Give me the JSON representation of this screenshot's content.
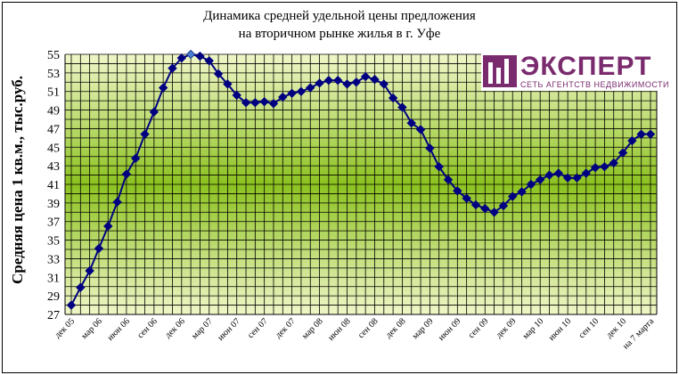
{
  "chart_data": {
    "type": "line",
    "title_line1": "Динамика средней удельной цены предложения",
    "title_line2": "на вторичном рынке жилья в г. Уфе",
    "ylabel": "Средняя цена 1 кв.м., тыс.руб.",
    "xlabel": "",
    "ylim": [
      27,
      55
    ],
    "yticks": [
      27,
      29,
      31,
      33,
      35,
      37,
      39,
      41,
      43,
      45,
      47,
      49,
      51,
      53,
      55
    ],
    "grid": true,
    "legend": "none",
    "x_tick_labels": [
      "дек 05",
      "мар 06",
      "июн 06",
      "сен 06",
      "дек 06",
      "мар 07",
      "июн 07",
      "сен 07",
      "дек 07",
      "мар 08",
      "июн 08",
      "сен 08",
      "дек 08",
      "мар 09",
      "июн 09",
      "сен 09",
      "дек 09",
      "мар 10",
      "июн 10",
      "сен 10",
      "дек 10",
      "на 7 марта"
    ],
    "values": [
      28.0,
      29.9,
      31.7,
      34.1,
      36.5,
      39.1,
      42.1,
      43.8,
      46.4,
      48.8,
      51.4,
      53.5,
      54.6,
      55.0,
      54.8,
      54.3,
      52.9,
      51.8,
      50.6,
      49.8,
      49.8,
      49.9,
      49.7,
      50.4,
      50.8,
      51.0,
      51.4,
      51.9,
      52.2,
      52.2,
      51.8,
      52.0,
      52.6,
      52.3,
      51.8,
      50.3,
      49.3,
      47.6,
      46.9,
      44.9,
      42.9,
      41.5,
      40.3,
      39.5,
      38.8,
      38.4,
      38.0,
      38.7,
      39.7,
      40.2,
      41.0,
      41.5,
      42.0,
      42.2,
      41.7,
      41.7,
      42.2,
      42.8,
      42.9,
      43.3,
      44.4,
      45.7,
      46.4,
      46.4
    ],
    "highlight_index": 13,
    "colors": {
      "line": "#000080",
      "marker": "#000080",
      "highlight_marker": "#4a7fd6",
      "plot_bg_edge": "#f0f6c8",
      "plot_bg_center": "#8cc220",
      "grid": "#000000"
    }
  },
  "logo": {
    "name": "ЭКСПЕРТ",
    "tagline": "СЕТЬ АГЕНТСТВ НЕДВИЖИМОСТИ",
    "color": "#7a2b6e"
  }
}
